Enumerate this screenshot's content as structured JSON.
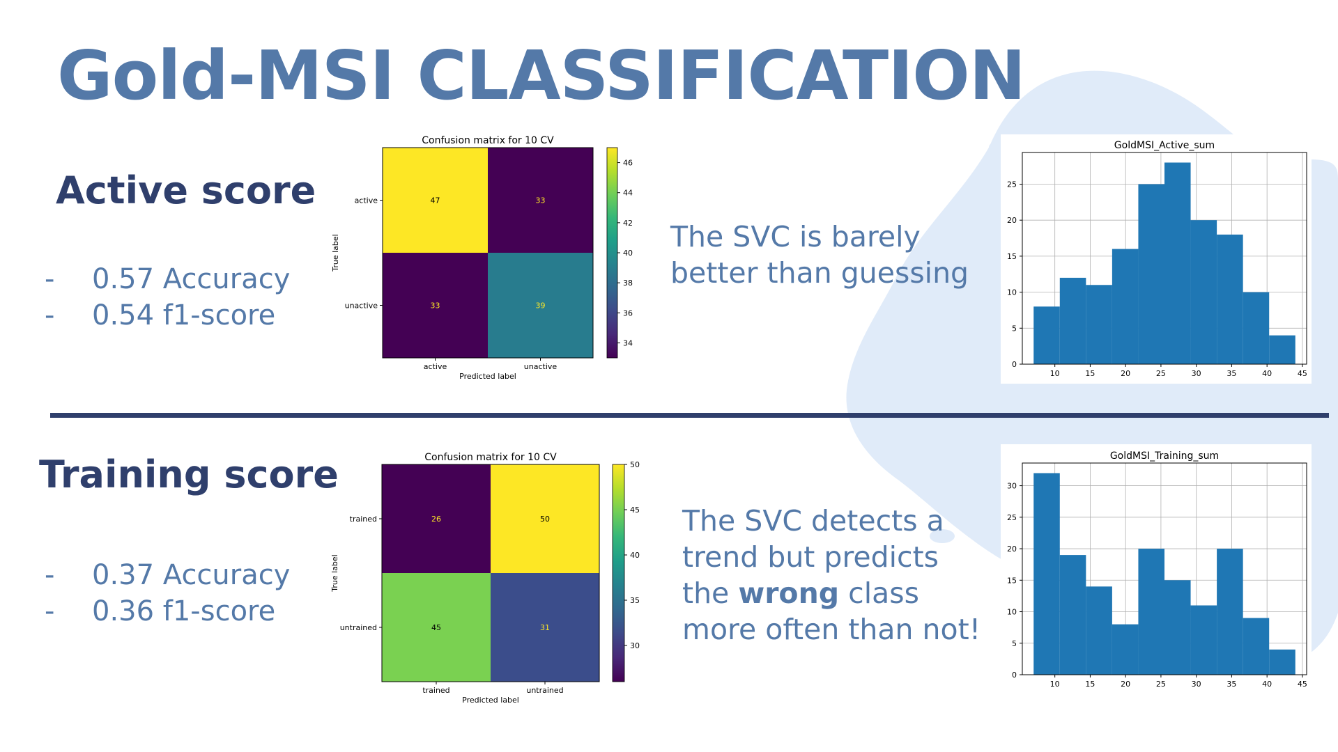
{
  "slide": {
    "title": "Gold-MSI CLASSIFICATION",
    "divider_color": "#2f3f6c",
    "accent_color": "#5479a8",
    "heading_color": "#2f3f6c"
  },
  "active": {
    "heading": "Active score",
    "bullets": [
      {
        "dash": "-",
        "text": "0.57 Accuracy"
      },
      {
        "dash": "-",
        "text": "0.54 f1-score"
      }
    ],
    "note_lines": [
      "The SVC is barely",
      "better than guessing"
    ]
  },
  "training": {
    "heading": "Training score",
    "bullets": [
      {
        "dash": "-",
        "text": "0.37 Accuracy"
      },
      {
        "dash": "-",
        "text": "0.36 f1-score"
      }
    ],
    "note": {
      "line1": "The SVC detects a",
      "line2": "trend but predicts",
      "line3_before": "the ",
      "line3_bold": "wrong",
      "line3_after": " class",
      "line4": "more often than not!"
    }
  },
  "chart_data": [
    {
      "type": "heatmap",
      "title": "Confusion matrix for 10 CV",
      "xlabel": "Predicted label",
      "ylabel": "True label",
      "x_categories": [
        "active",
        "unactive"
      ],
      "y_categories": [
        "active",
        "unactive"
      ],
      "values": [
        [
          47,
          33
        ],
        [
          33,
          39
        ]
      ],
      "colorbar_ticks": [
        34,
        36,
        38,
        40,
        42,
        44,
        46
      ],
      "colormap": "viridis",
      "cell_colors": [
        [
          "#fde725",
          "#440154"
        ],
        [
          "#440154",
          "#287c8e"
        ]
      ],
      "label_colors": [
        [
          "#000000",
          "#fde725"
        ],
        [
          "#fde725",
          "#fde725"
        ]
      ]
    },
    {
      "type": "heatmap",
      "title": "Confusion matrix for 10 CV",
      "xlabel": "Predicted label",
      "ylabel": "True label",
      "x_categories": [
        "trained",
        "untrained"
      ],
      "y_categories": [
        "trained",
        "untrained"
      ],
      "values": [
        [
          26,
          50
        ],
        [
          45,
          31
        ]
      ],
      "colorbar_ticks": [
        30,
        35,
        40,
        45,
        50
      ],
      "colormap": "viridis",
      "cell_colors": [
        [
          "#440154",
          "#fde725"
        ],
        [
          "#7ad151",
          "#3b4d8b"
        ]
      ],
      "label_colors": [
        [
          "#fde725",
          "#000000"
        ],
        [
          "#000000",
          "#fde725"
        ]
      ]
    },
    {
      "type": "bar",
      "subtype": "histogram",
      "title": "GoldMSI_Active_sum",
      "color": "#1f77b4",
      "xlim": [
        5.4,
        45.6
      ],
      "ylim": [
        0,
        29.4
      ],
      "xticks": [
        10,
        15,
        20,
        25,
        30,
        35,
        40,
        45
      ],
      "yticks": [
        0,
        5,
        10,
        15,
        20,
        25
      ],
      "grid": true,
      "bins": [
        {
          "x0": 7.0,
          "x1": 10.7,
          "value": 8
        },
        {
          "x0": 10.7,
          "x1": 14.4,
          "value": 12
        },
        {
          "x0": 14.4,
          "x1": 18.1,
          "value": 11
        },
        {
          "x0": 18.1,
          "x1": 21.8,
          "value": 16
        },
        {
          "x0": 21.8,
          "x1": 25.5,
          "value": 25
        },
        {
          "x0": 25.5,
          "x1": 29.2,
          "value": 28
        },
        {
          "x0": 29.2,
          "x1": 32.9,
          "value": 20
        },
        {
          "x0": 32.9,
          "x1": 36.6,
          "value": 18
        },
        {
          "x0": 36.6,
          "x1": 40.3,
          "value": 10
        },
        {
          "x0": 40.3,
          "x1": 44.0,
          "value": 4
        }
      ]
    },
    {
      "type": "bar",
      "subtype": "histogram",
      "title": "GoldMSI_Training_sum",
      "color": "#1f77b4",
      "xlim": [
        5.4,
        45.6
      ],
      "ylim": [
        0,
        33.6
      ],
      "xticks": [
        10,
        15,
        20,
        25,
        30,
        35,
        40,
        45
      ],
      "yticks": [
        0,
        5,
        10,
        15,
        20,
        25,
        30
      ],
      "grid": true,
      "bins": [
        {
          "x0": 7.0,
          "x1": 10.7,
          "value": 32
        },
        {
          "x0": 10.7,
          "x1": 14.4,
          "value": 19
        },
        {
          "x0": 14.4,
          "x1": 18.1,
          "value": 14
        },
        {
          "x0": 18.1,
          "x1": 21.8,
          "value": 8
        },
        {
          "x0": 21.8,
          "x1": 25.5,
          "value": 20
        },
        {
          "x0": 25.5,
          "x1": 29.2,
          "value": 15
        },
        {
          "x0": 29.2,
          "x1": 32.9,
          "value": 11
        },
        {
          "x0": 32.9,
          "x1": 36.6,
          "value": 20
        },
        {
          "x0": 36.6,
          "x1": 40.3,
          "value": 9
        },
        {
          "x0": 40.3,
          "x1": 44.0,
          "value": 4
        }
      ]
    }
  ]
}
